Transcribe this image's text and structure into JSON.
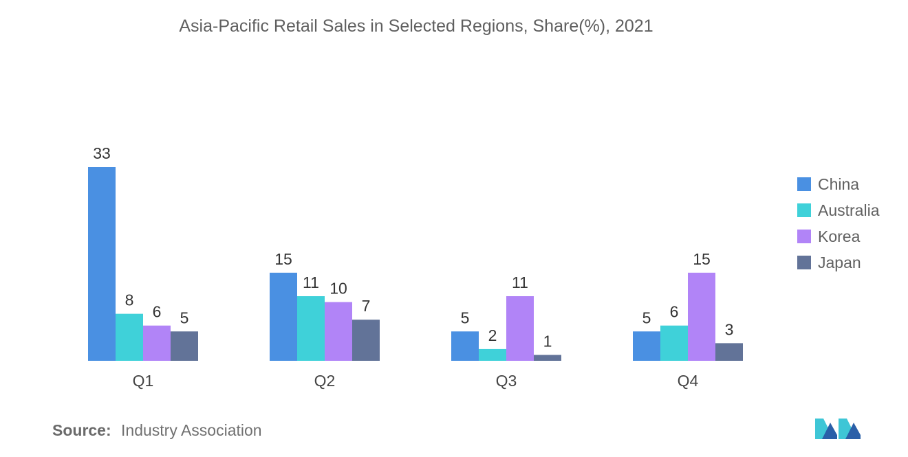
{
  "chart_data": {
    "type": "bar",
    "title": "Asia-Pacific Retail Sales in Selected Regions, Share(%), 2021",
    "categories": [
      "Q1",
      "Q2",
      "Q3",
      "Q4"
    ],
    "series": [
      {
        "name": "China",
        "color": "#4a90e2",
        "values": [
          33,
          15,
          5,
          5
        ]
      },
      {
        "name": "Australia",
        "color": "#3fd1d9",
        "values": [
          8,
          11,
          2,
          6
        ]
      },
      {
        "name": "Korea",
        "color": "#b184f7",
        "values": [
          6,
          10,
          11,
          15
        ]
      },
      {
        "name": "Japan",
        "color": "#627398",
        "values": [
          5,
          7,
          1,
          3
        ]
      }
    ],
    "xlabel": "",
    "ylabel": "",
    "ylim": [
      0,
      33
    ],
    "legend": "right",
    "grid": false
  },
  "source": {
    "label": "Source:",
    "text": "Industry Association"
  }
}
